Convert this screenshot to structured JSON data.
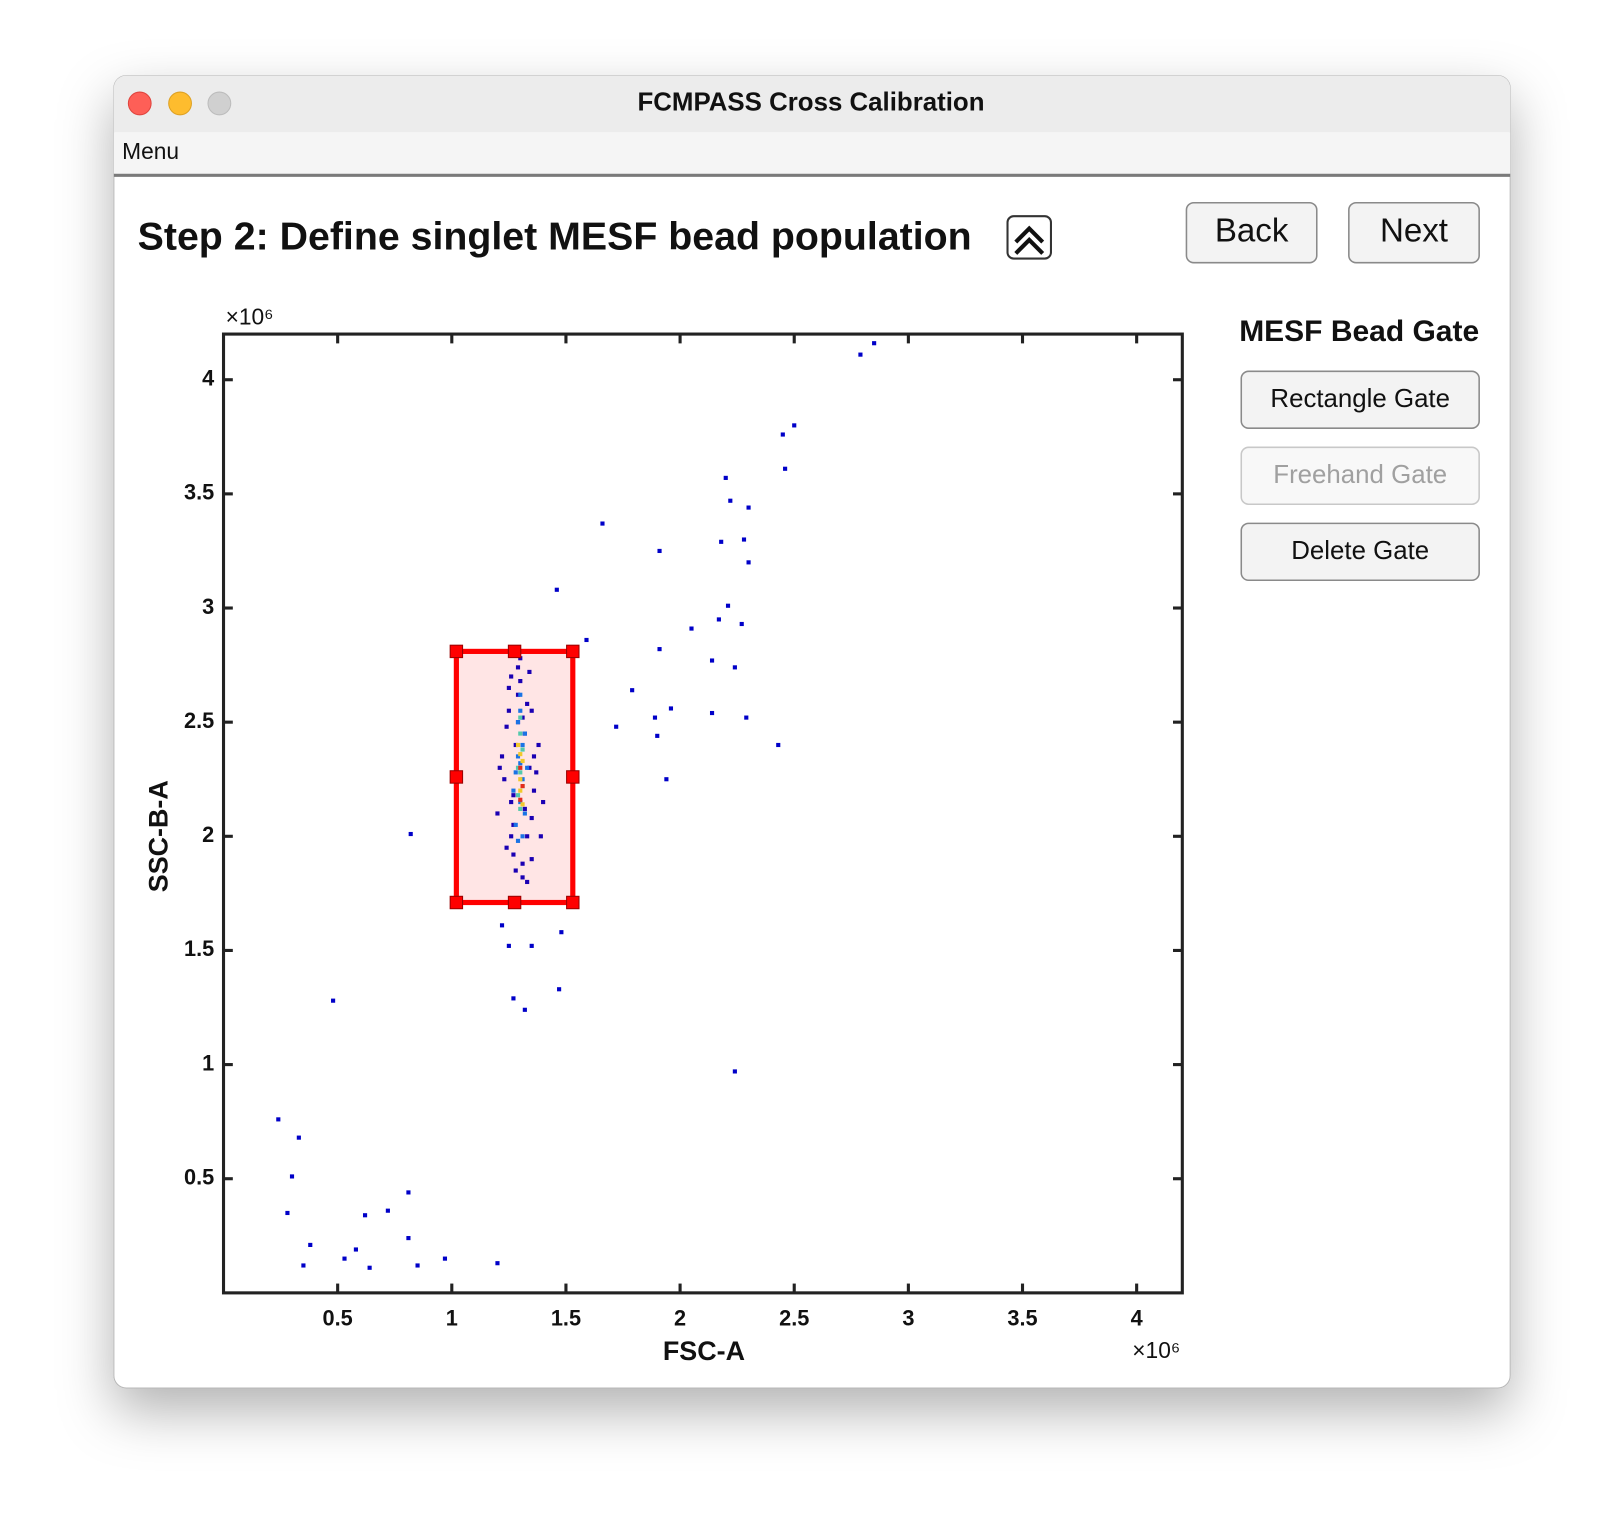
{
  "window": {
    "title": "FCMPASS Cross Calibration"
  },
  "menu": [
    "Menu"
  ],
  "header": {
    "title": "Step 2: Define singlet MESF bead population",
    "buttons": [
      "Back",
      "Next"
    ]
  },
  "panel": {
    "title": "MESF Bead Gate",
    "buttons": [
      {
        "label": "Rectangle Gate",
        "enabled": true
      },
      {
        "label": "Freehand Gate",
        "enabled": false
      },
      {
        "label": "Delete Gate",
        "enabled": true
      }
    ]
  },
  "chart_data": {
    "type": "scatter",
    "x_label": "FSC-A",
    "y_label": "SSC-B-A",
    "x_exponent": "×10⁶",
    "y_exponent": "×10⁶",
    "xlim": [
      0,
      4.2
    ],
    "ylim": [
      0,
      4.2
    ],
    "xticks": [
      0.5,
      1,
      1.5,
      2,
      2.5,
      3,
      3.5,
      4
    ],
    "yticks": [
      0.5,
      1,
      1.5,
      2,
      2.5,
      3,
      3.5,
      4
    ],
    "series": [
      {
        "color": "#0000c8",
        "x": [
          2.45,
          2.5,
          2.46,
          2.2,
          2.22,
          2.3,
          1.66,
          1.91,
          2.18,
          2.28,
          2.3,
          1.46,
          2.21,
          2.17,
          2.05,
          2.27,
          1.91,
          2.14,
          2.24,
          1.59,
          1.79,
          2.14,
          2.29,
          1.89,
          1.96,
          1.72,
          1.9,
          2.43,
          1.94,
          0.82,
          0.48,
          1.27,
          1.32,
          1.47,
          2.24,
          0.24,
          0.33,
          0.3,
          0.81,
          0.28,
          0.62,
          0.72,
          0.38,
          0.58,
          0.81,
          0.53,
          0.97,
          1.2,
          0.35,
          0.64,
          0.85,
          2.79,
          2.85,
          1.22,
          1.48,
          1.35,
          1.25
        ],
        "y": [
          3.76,
          3.8,
          3.61,
          3.57,
          3.47,
          3.44,
          3.37,
          3.25,
          3.29,
          3.3,
          3.2,
          3.08,
          3.01,
          2.95,
          2.91,
          2.93,
          2.82,
          2.77,
          2.74,
          2.86,
          2.64,
          2.54,
          2.52,
          2.52,
          2.56,
          2.48,
          2.44,
          2.4,
          2.25,
          2.01,
          1.28,
          1.29,
          1.24,
          1.33,
          0.97,
          0.76,
          0.68,
          0.51,
          0.44,
          0.35,
          0.34,
          0.36,
          0.21,
          0.19,
          0.24,
          0.15,
          0.15,
          0.13,
          0.12,
          0.11,
          0.12,
          4.11,
          4.16,
          1.61,
          1.58,
          1.52,
          1.52
        ]
      },
      {
        "color": "#0000c8",
        "x": [
          1.2,
          1.22,
          1.24,
          1.25,
          1.26,
          1.27,
          1.28,
          1.29,
          1.3,
          1.31,
          1.32,
          1.33,
          1.34,
          1.35,
          1.36,
          1.38,
          1.4,
          1.23,
          1.25,
          1.27,
          1.29,
          1.31,
          1.33,
          1.35,
          1.37,
          1.24,
          1.26,
          1.28,
          1.3,
          1.32,
          1.34,
          1.36,
          1.21,
          1.39,
          1.27,
          1.33,
          1.29,
          1.31,
          1.26,
          1.35
        ],
        "y": [
          2.1,
          2.35,
          1.95,
          2.55,
          2.7,
          2.05,
          1.85,
          2.62,
          2.78,
          1.82,
          2.45,
          2.0,
          2.3,
          1.9,
          2.2,
          2.4,
          2.15,
          2.25,
          2.65,
          1.92,
          2.5,
          1.88,
          2.58,
          2.08,
          2.28,
          2.48,
          2.0,
          2.4,
          2.68,
          2.12,
          2.72,
          2.35,
          2.3,
          2.0,
          2.18,
          1.8,
          2.74,
          2.52,
          2.15,
          2.55
        ]
      },
      {
        "color": "#0080ff",
        "x": [
          1.28,
          1.3,
          1.31,
          1.29,
          1.32,
          1.27,
          1.3,
          1.33,
          1.29,
          1.31,
          1.28,
          1.3,
          1.32,
          1.29,
          1.31,
          1.3
        ],
        "y": [
          2.05,
          2.15,
          2.25,
          2.35,
          2.45,
          2.2,
          2.55,
          2.3,
          1.98,
          2.4,
          2.28,
          2.62,
          2.1,
          2.5,
          2.0,
          2.32
        ]
      },
      {
        "color": "#40e0c0",
        "x": [
          1.29,
          1.3,
          1.31,
          1.3,
          1.29,
          1.31,
          1.3,
          1.3
        ],
        "y": [
          2.18,
          2.28,
          2.38,
          2.45,
          2.3,
          2.22,
          2.12,
          2.52
        ]
      },
      {
        "color": "#f0e030",
        "x": [
          1.3,
          1.31,
          1.29,
          1.3,
          1.31,
          1.3
        ],
        "y": [
          2.25,
          2.33,
          2.4,
          2.2,
          2.14,
          2.36
        ]
      },
      {
        "color": "#e03020",
        "x": [
          1.3,
          1.31,
          1.3
        ],
        "y": [
          2.3,
          2.22,
          2.16
        ]
      }
    ],
    "gate": {
      "x": [
        1.02,
        1.53
      ],
      "y": [
        1.71,
        2.81
      ],
      "color": "#ff0000"
    }
  }
}
